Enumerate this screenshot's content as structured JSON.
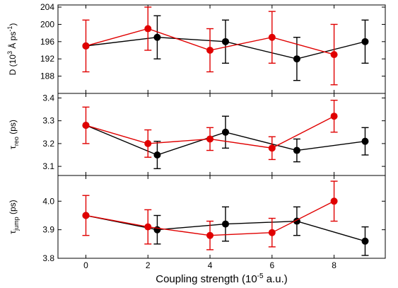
{
  "chart_data": [
    {
      "type": "scatter",
      "panel": "top",
      "ylabel": {
        "base": "D (10",
        "sup": "3",
        "rest": " Å ps",
        "sup2": "-1",
        "end": ")"
      },
      "ylim": [
        184,
        204.5
      ],
      "yticks": [
        188,
        192,
        196,
        200,
        204
      ],
      "tick_labels": [
        "188",
        "192",
        "196",
        "200",
        "204"
      ],
      "series": [
        {
          "color": "#000000",
          "x": [
            0,
            2.3,
            4.5,
            6.8,
            9
          ],
          "y": [
            195,
            197,
            196,
            192,
            196
          ],
          "err": [
            0,
            5,
            5,
            5,
            5
          ]
        },
        {
          "color": "#e00000",
          "x": [
            0,
            2,
            4,
            6,
            8
          ],
          "y": [
            195,
            199,
            194,
            197,
            193
          ],
          "err": [
            6,
            5,
            5,
            6,
            7
          ]
        }
      ]
    },
    {
      "type": "scatter",
      "panel": "middle",
      "ylabel": {
        "base": "τ",
        "sub": "reo",
        "end": " (ps)"
      },
      "ylim": [
        3.06,
        3.42
      ],
      "yticks": [
        3.1,
        3.2,
        3.3,
        3.4
      ],
      "tick_labels": [
        "3.1",
        "3.2",
        "3.3",
        "3.4"
      ],
      "series": [
        {
          "color": "#000000",
          "x": [
            0,
            2.3,
            4.5,
            6.8,
            9
          ],
          "y": [
            3.28,
            3.15,
            3.25,
            3.17,
            3.21
          ],
          "err": [
            0,
            0.06,
            0.07,
            0.05,
            0.06
          ]
        },
        {
          "color": "#e00000",
          "x": [
            0,
            2,
            4,
            6,
            8
          ],
          "y": [
            3.28,
            3.2,
            3.22,
            3.18,
            3.32
          ],
          "err": [
            0.08,
            0.06,
            0.05,
            0.05,
            0.07
          ]
        }
      ]
    },
    {
      "type": "scatter",
      "panel": "bottom",
      "ylabel": {
        "base": "τ",
        "sub": "jump",
        "end": " (ps)"
      },
      "ylim": [
        3.8,
        4.09
      ],
      "yticks": [
        3.8,
        3.9,
        4.0
      ],
      "tick_labels": [
        "3.8",
        "3.9",
        "4.0"
      ],
      "series": [
        {
          "color": "#000000",
          "x": [
            0,
            2.3,
            4.5,
            6.8,
            9
          ],
          "y": [
            3.95,
            3.9,
            3.92,
            3.93,
            3.86
          ],
          "err": [
            0,
            0.05,
            0.06,
            0.05,
            0.05
          ]
        },
        {
          "color": "#e00000",
          "x": [
            0,
            2,
            4,
            6,
            8
          ],
          "y": [
            3.95,
            3.91,
            3.88,
            3.89,
            4.0
          ],
          "err": [
            0.07,
            0.06,
            0.05,
            0.05,
            0.07
          ]
        }
      ]
    }
  ],
  "x_axis": {
    "xlim": [
      -0.9,
      9.65
    ],
    "xticks": [
      0,
      2,
      4,
      6,
      8
    ],
    "tick_labels": [
      "0",
      "2",
      "4",
      "6",
      "8"
    ],
    "xlabel": {
      "base": "Coupling strength (10",
      "sup": "-5",
      "end": " a.u.)"
    }
  }
}
